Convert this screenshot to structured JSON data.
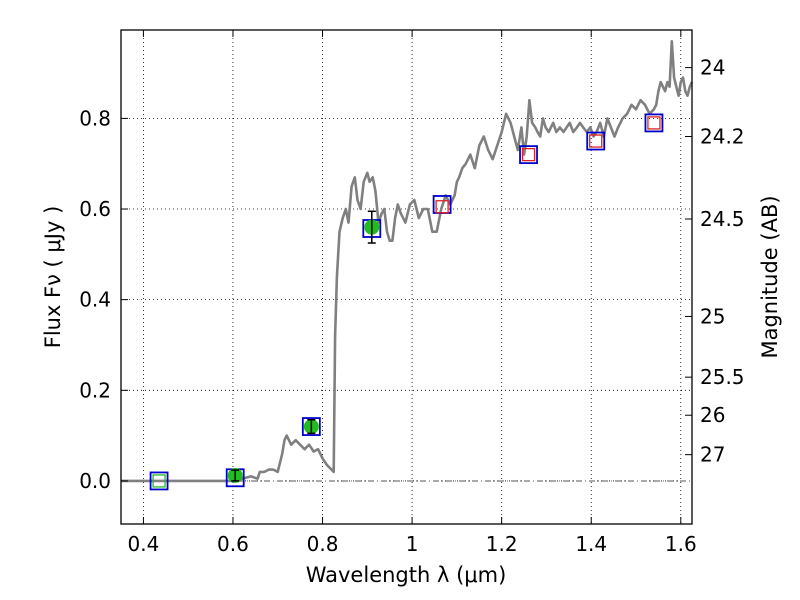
{
  "chart_data": {
    "type": "line",
    "xlabel": "Wavelength  λ (μm)",
    "ylabel": "Flux  Fν  ( μJy )",
    "ylabel_right": "Magnitude (AB)",
    "xlim": [
      0.35,
      1.625
    ],
    "ylim": [
      -0.095,
      0.995
    ],
    "grid": true,
    "x_ticks": [
      0.4,
      0.6,
      0.8,
      1.0,
      1.2,
      1.4,
      1.6
    ],
    "x_tick_labels": [
      "0.4",
      "0.6",
      "0.8",
      "1",
      "1.2",
      "1.4",
      "1.6"
    ],
    "y_ticks": [
      0.0,
      0.2,
      0.4,
      0.6,
      0.8
    ],
    "y_tick_labels": [
      "0.0",
      "0.2",
      "0.4",
      "0.6",
      "0.8"
    ],
    "right_ticks": [
      {
        "label": "24",
        "flux": 0.912
      },
      {
        "label": "24.2",
        "flux": 0.76
      },
      {
        "label": "24.5",
        "flux": 0.578
      },
      {
        "label": "25",
        "flux": 0.363
      },
      {
        "label": "25.5",
        "flux": 0.229
      },
      {
        "label": "26",
        "flux": 0.145
      },
      {
        "label": "27",
        "flux": 0.058
      }
    ],
    "reference_line": 0,
    "colors": {
      "model": "#808080",
      "model_box": "#0000cc",
      "detection": "#22bb22",
      "upper": "#dd2222",
      "error_bar": "#000000",
      "reference_line": "#555555"
    },
    "series": [
      {
        "type": "line",
        "x": [
          0.35,
          0.45,
          0.55,
          0.6,
          0.62,
          0.64,
          0.655,
          0.66,
          0.67,
          0.68,
          0.69,
          0.7,
          0.71,
          0.715,
          0.72,
          0.73,
          0.74,
          0.75,
          0.76,
          0.77,
          0.78,
          0.79,
          0.8,
          0.81,
          0.82,
          0.825,
          0.828,
          0.832,
          0.838,
          0.845,
          0.852,
          0.858,
          0.865,
          0.872,
          0.878,
          0.885,
          0.892,
          0.9,
          0.905,
          0.912,
          0.918,
          0.925,
          0.932,
          0.938,
          0.944,
          0.95,
          0.956,
          0.962,
          0.968,
          0.975,
          0.985,
          0.995,
          1.005,
          1.015,
          1.025,
          1.035,
          1.045,
          1.055,
          1.065,
          1.075,
          1.085,
          1.095,
          1.1,
          1.105,
          1.112,
          1.12,
          1.13,
          1.14,
          1.15,
          1.16,
          1.17,
          1.18,
          1.19,
          1.2,
          1.21,
          1.215,
          1.22,
          1.228,
          1.236,
          1.244,
          1.25,
          1.256,
          1.262,
          1.268,
          1.275,
          1.28,
          1.286,
          1.292,
          1.298,
          1.305,
          1.31,
          1.315,
          1.322,
          1.33,
          1.338,
          1.345,
          1.352,
          1.36,
          1.368,
          1.375,
          1.382,
          1.39,
          1.398,
          1.405,
          1.412,
          1.42,
          1.428,
          1.436,
          1.444,
          1.452,
          1.46,
          1.47,
          1.48,
          1.49,
          1.5,
          1.51,
          1.52,
          1.53,
          1.54,
          1.545,
          1.55,
          1.555,
          1.56,
          1.565,
          1.57,
          1.575,
          1.58,
          1.585,
          1.59,
          1.595,
          1.6,
          1.605,
          1.61,
          1.615,
          1.62,
          1.625
        ],
        "y": [
          0.0,
          0.0,
          0.0,
          0.0,
          0.005,
          0.01,
          0.005,
          0.02,
          0.02,
          0.025,
          0.025,
          0.02,
          0.06,
          0.09,
          0.1,
          0.08,
          0.09,
          0.08,
          0.07,
          0.08,
          0.065,
          0.07,
          0.05,
          0.035,
          0.025,
          0.02,
          0.32,
          0.45,
          0.55,
          0.58,
          0.6,
          0.57,
          0.65,
          0.67,
          0.62,
          0.6,
          0.66,
          0.68,
          0.66,
          0.67,
          0.64,
          0.57,
          0.59,
          0.6,
          0.55,
          0.53,
          0.53,
          0.58,
          0.61,
          0.59,
          0.57,
          0.61,
          0.62,
          0.58,
          0.6,
          0.6,
          0.55,
          0.55,
          0.6,
          0.63,
          0.61,
          0.63,
          0.66,
          0.67,
          0.69,
          0.7,
          0.72,
          0.69,
          0.74,
          0.76,
          0.73,
          0.71,
          0.74,
          0.77,
          0.81,
          0.8,
          0.79,
          0.76,
          0.73,
          0.78,
          0.72,
          0.76,
          0.84,
          0.79,
          0.78,
          0.77,
          0.76,
          0.8,
          0.78,
          0.77,
          0.78,
          0.79,
          0.77,
          0.78,
          0.77,
          0.78,
          0.79,
          0.77,
          0.78,
          0.79,
          0.78,
          0.77,
          0.78,
          0.76,
          0.77,
          0.79,
          0.76,
          0.8,
          0.78,
          0.76,
          0.78,
          0.8,
          0.81,
          0.83,
          0.82,
          0.84,
          0.83,
          0.81,
          0.82,
          0.83,
          0.86,
          0.88,
          0.87,
          0.86,
          0.88,
          0.87,
          0.97,
          0.89,
          0.87,
          0.85,
          0.88,
          0.89,
          0.86,
          0.85,
          0.87,
          0.88
        ]
      },
      {
        "type": "scatter",
        "marker": "square",
        "x": [
          0.435,
          0.605,
          0.775,
          0.91,
          1.067,
          1.26,
          1.41,
          1.54
        ],
        "y": [
          0.0,
          0.007,
          0.12,
          0.557,
          0.61,
          0.72,
          0.75,
          0.79
        ]
      },
      {
        "type": "scatter",
        "marker": "circle",
        "x": [
          0.605,
          0.775,
          0.91
        ],
        "y": [
          0.012,
          0.12,
          0.56
        ],
        "yerr": [
          0.012,
          0.015,
          0.035
        ]
      },
      {
        "type": "scatter",
        "marker": "square",
        "x": [
          1.067,
          1.26,
          1.41,
          1.54
        ],
        "y": [
          0.605,
          0.72,
          0.75,
          0.79
        ]
      },
      {
        "type": "scatter",
        "marker": "square",
        "x": [
          0.435
        ],
        "y": [
          0.0
        ]
      }
    ]
  }
}
